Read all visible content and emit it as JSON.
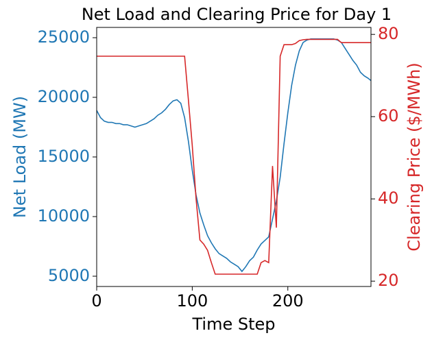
{
  "chart_data": {
    "type": "line",
    "title": "Net Load and Clearing Price for Day 1",
    "xlabel": "Time Step",
    "ylabel": "Net Load (MW)",
    "y2label": "Clearing Price ($/MWh)",
    "xlim": [
      0,
      287
    ],
    "xticks": [
      0,
      100,
      200
    ],
    "ylim": [
      4138,
      25862
    ],
    "yticks": [
      5000,
      10000,
      15000,
      20000,
      25000
    ],
    "y2lim": [
      18.7,
      81.7
    ],
    "y2ticks": [
      20,
      40,
      60,
      80
    ],
    "x": [
      0,
      4,
      8,
      12,
      16,
      20,
      24,
      28,
      32,
      36,
      40,
      44,
      48,
      52,
      56,
      60,
      64,
      68,
      72,
      76,
      80,
      84,
      88,
      92,
      96,
      100,
      104,
      108,
      112,
      116,
      120,
      124,
      128,
      132,
      136,
      140,
      144,
      148,
      152,
      156,
      160,
      164,
      168,
      172,
      176,
      180,
      184,
      188,
      192,
      196,
      200,
      204,
      208,
      212,
      216,
      220,
      224,
      228,
      232,
      236,
      240,
      244,
      248,
      252,
      256,
      260,
      264,
      268,
      272,
      276,
      280,
      284,
      287
    ],
    "series": [
      {
        "name": "Net Load (MW)",
        "color": "#1f77b4",
        "axis": "y",
        "values": [
          18900,
          18300,
          18000,
          17900,
          17900,
          17800,
          17800,
          17700,
          17700,
          17600,
          17500,
          17600,
          17700,
          17800,
          18000,
          18200,
          18500,
          18700,
          19000,
          19400,
          19700,
          19800,
          19500,
          18300,
          16300,
          13900,
          11800,
          10300,
          9300,
          8400,
          7800,
          7300,
          6900,
          6700,
          6500,
          6200,
          6000,
          5800,
          5400,
          5800,
          6300,
          6600,
          7200,
          7700,
          8000,
          8300,
          9800,
          11300,
          13300,
          16100,
          18700,
          21000,
          22700,
          23900,
          24600,
          24800,
          24900,
          24900,
          24900,
          24900,
          24900,
          24900,
          24900,
          24800,
          24600,
          24100,
          23600,
          23100,
          22700,
          22100,
          21800,
          21600,
          21400
        ]
      },
      {
        "name": "Clearing Price ($/MWh)",
        "color": "#d62728",
        "axis": "y2",
        "values": [
          74.7,
          74.7,
          74.7,
          74.7,
          74.7,
          74.7,
          74.7,
          74.7,
          74.7,
          74.7,
          74.7,
          74.7,
          74.7,
          74.7,
          74.7,
          74.7,
          74.7,
          74.7,
          74.7,
          74.7,
          74.7,
          74.7,
          74.7,
          74.7,
          64,
          53,
          40,
          30,
          29,
          27.5,
          24.5,
          21.7,
          21.7,
          21.7,
          21.7,
          21.7,
          21.7,
          21.7,
          21.7,
          21.7,
          21.7,
          21.7,
          21.7,
          24.5,
          25,
          24.5,
          48,
          33,
          74.7,
          77.5,
          77.5,
          77.5,
          77.8,
          78.5,
          78.7,
          78.8,
          78.8,
          78.8,
          78.8,
          78.8,
          78.8,
          78.8,
          78.8,
          78.8,
          78,
          78,
          78,
          78,
          78,
          78,
          78,
          78,
          78
        ]
      }
    ]
  }
}
